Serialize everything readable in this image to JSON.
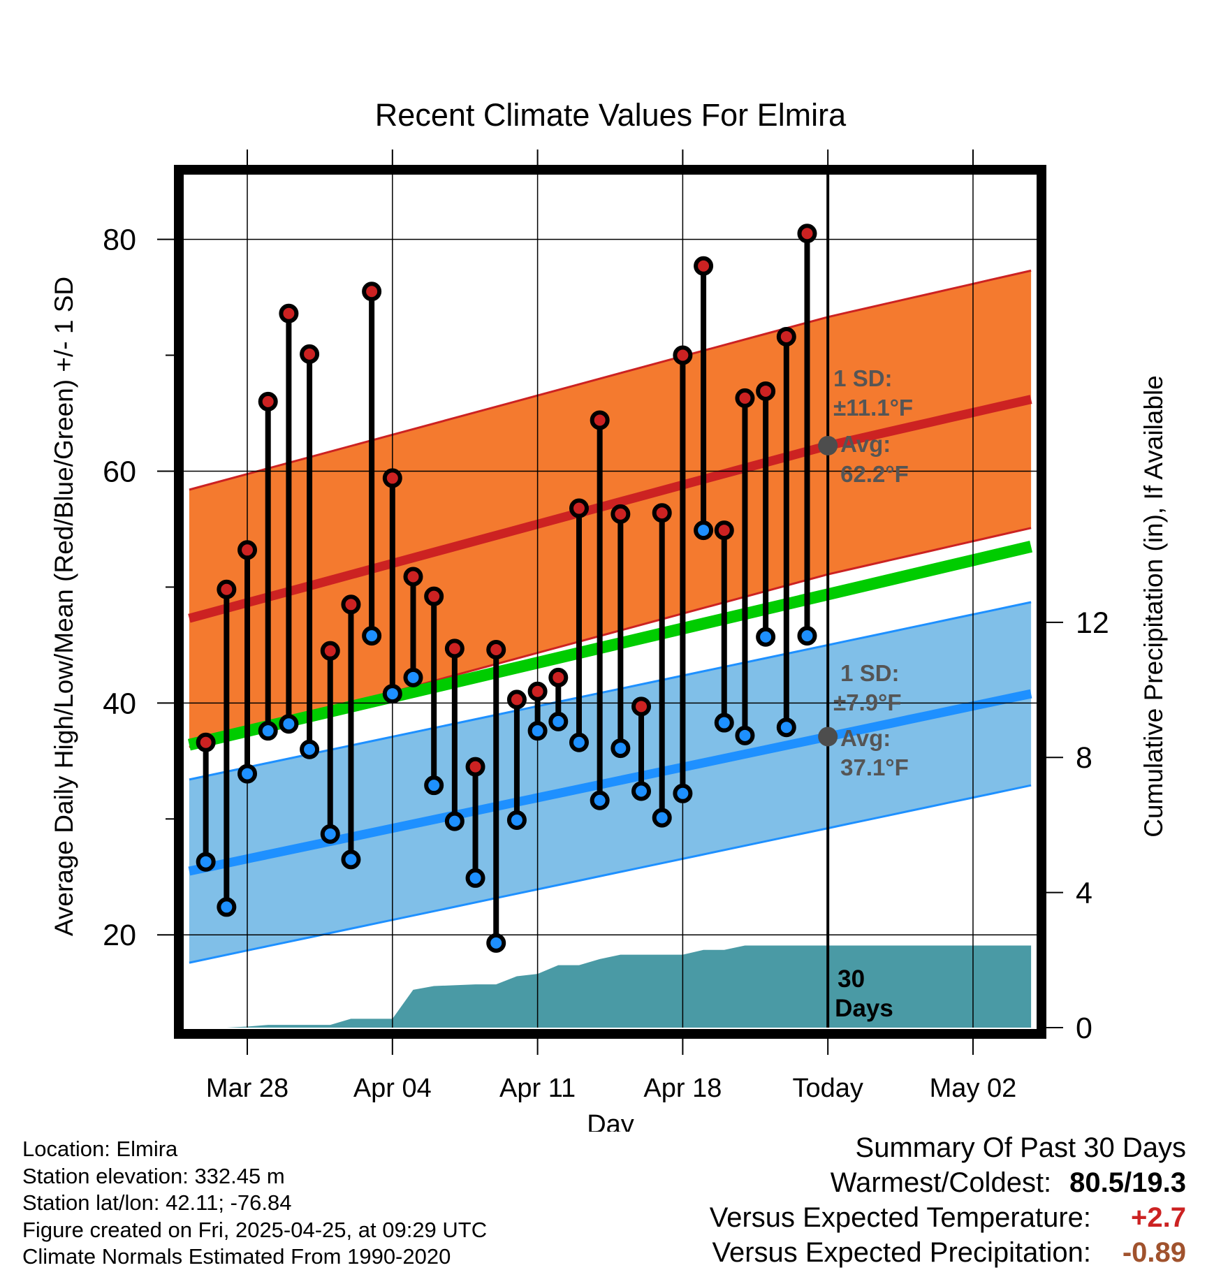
{
  "chart_data": {
    "type": "line",
    "title": "Recent Climate Values For Elmira",
    "xlabel": "Day",
    "ylabel": "Average Daily High/Low/Mean (Red/Blue/Green) +/- 1 SD",
    "y2label": "Cumulative Precipitation (in), If Available",
    "xlim": [
      -3.1,
      38.1
    ],
    "ylim": [
      12,
      86
    ],
    "y2lim": [
      0,
      25.4
    ],
    "x_ticks": [
      {
        "x": 0,
        "label": "Mar 28"
      },
      {
        "x": 7,
        "label": "Apr 04"
      },
      {
        "x": 14,
        "label": "Apr 11"
      },
      {
        "x": 21,
        "label": "Apr 18"
      },
      {
        "x": 28,
        "label": "Today"
      },
      {
        "x": 35,
        "label": "May 02"
      }
    ],
    "y_ticks": [
      20,
      40,
      60,
      80
    ],
    "y2_ticks": [
      0,
      4,
      8,
      12
    ],
    "today_x": 28,
    "normal_high": {
      "x": [
        -2.8,
        28,
        37.8
      ],
      "avg": [
        47.3,
        62.2,
        66.2
      ],
      "sd": 11.1
    },
    "normal_low": {
      "x": [
        -2.8,
        28,
        37.8
      ],
      "avg": [
        25.5,
        37.1,
        40.8
      ],
      "sd": 7.9
    },
    "normal_mean": {
      "x": [
        -2.8,
        37.8
      ],
      "y": [
        36.4,
        53.5
      ]
    },
    "days": {
      "x": [
        -2,
        -1,
        0,
        1,
        2,
        3,
        4,
        5,
        6,
        7,
        8,
        9,
        10,
        11,
        12,
        13,
        14,
        15,
        16,
        17,
        18,
        19,
        20,
        21,
        22,
        23,
        24,
        25,
        26,
        27
      ],
      "high": [
        36.6,
        49.8,
        53.2,
        66.0,
        73.6,
        70.1,
        44.5,
        48.5,
        75.5,
        59.4,
        50.9,
        49.2,
        44.7,
        34.5,
        44.6,
        40.3,
        41.0,
        42.2,
        56.8,
        64.4,
        56.3,
        39.7,
        56.4,
        70.0,
        77.7,
        54.9,
        66.3,
        66.9,
        71.6,
        80.5
      ],
      "low": [
        26.3,
        22.4,
        33.9,
        37.6,
        38.2,
        36.0,
        28.7,
        26.5,
        45.8,
        40.8,
        42.2,
        32.9,
        29.8,
        24.9,
        19.3,
        29.9,
        37.6,
        38.4,
        36.6,
        31.6,
        36.1,
        32.4,
        30.1,
        32.2,
        54.9,
        38.3,
        37.2,
        45.7,
        37.9,
        45.8
      ],
      "low_above_normal": [
        false,
        false,
        false,
        false,
        false,
        false,
        false,
        false,
        true,
        false,
        false,
        false,
        false,
        false,
        false,
        false,
        false,
        false,
        false,
        false,
        false,
        false,
        false,
        false,
        true,
        false,
        false,
        true,
        false,
        true
      ]
    },
    "precip": {
      "x": [
        -3.0,
        -1.0,
        0.0,
        1.0,
        4.0,
        5.0,
        7.0,
        8.0,
        9.0,
        11.0,
        12.0,
        13.0,
        14.0,
        15.0,
        16.0,
        17.0,
        18.0,
        19.0,
        20.0,
        21.0,
        22.0,
        23.0,
        24.0,
        25.0,
        28.0,
        37.8
      ],
      "y": [
        0.0,
        0.0,
        0.03,
        0.08,
        0.08,
        0.26,
        0.26,
        1.12,
        1.23,
        1.28,
        1.28,
        1.52,
        1.59,
        1.85,
        1.85,
        2.03,
        2.16,
        2.16,
        2.16,
        2.16,
        2.3,
        2.3,
        2.43,
        2.43,
        2.43,
        2.43
      ]
    },
    "annotations": {
      "high_sd_label": "1 SD:",
      "high_sd_value": "±11.1°F",
      "high_avg_label": "Avg:",
      "high_avg_value": "62.2°F",
      "low_sd_label": "1 SD:",
      "low_sd_value": "±7.9°F",
      "low_avg_label": "Avg:",
      "low_avg_value": "37.1°F",
      "days_line1": "30",
      "days_line2": "Days"
    },
    "colors": {
      "high_band": "#f47a2f",
      "high_line": "#cc2222",
      "low_band": "#80bfe8",
      "low_line": "#1e90ff",
      "mean_line": "#00cc00",
      "precip": "#4a9aa5",
      "dot_high": "#cc2222",
      "dot_low": "#1e90ff",
      "annotation": "#555555"
    }
  },
  "footer": {
    "location": "Location: Elmira",
    "elevation": "Station elevation: 332.45 m",
    "latlon": "Station lat/lon: 42.11; -76.84",
    "created": "Figure created on Fri, 2025-04-25, at 09:29 UTC",
    "normals": "Climate Normals Estimated From 1990-2020"
  },
  "summary": {
    "title": "Summary Of Past 30 Days",
    "warm_label": "Warmest/Coldest:",
    "warm_value": "80.5/19.3",
    "temp_label": "Versus Expected Temperature:",
    "temp_value": "+2.7",
    "temp_color": "#cc2222",
    "precip_label": "Versus Expected Precipitation:",
    "precip_value": "-0.89",
    "precip_color": "#a0522d"
  }
}
